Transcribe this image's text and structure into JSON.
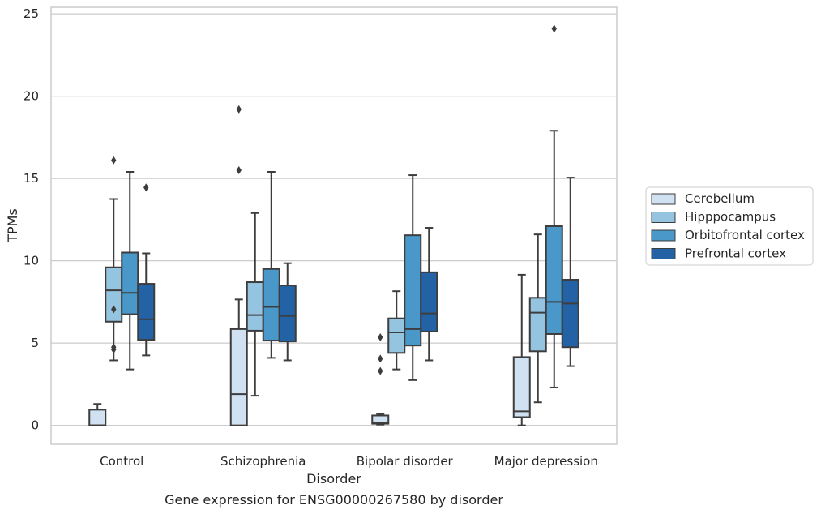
{
  "chart_data": {
    "type": "box",
    "title": "Gene expression for ENSG00000267580 by disorder",
    "xlabel": "Disorder",
    "ylabel": "TPMs",
    "ylim": [
      -1.15,
      25.4
    ],
    "yticks": [
      0,
      5,
      10,
      15,
      20,
      25
    ],
    "grid": "horizontal",
    "legend_position": "right",
    "categories": [
      "Control",
      "Schizophrenia",
      "Bipolar disorder",
      "Major depression"
    ],
    "colors": [
      "#d0e1f2",
      "#94c4df",
      "#4a98c9",
      "#2363a5"
    ],
    "series": [
      {
        "name": "Cerebellum",
        "boxes": [
          {
            "whislo": 0,
            "q1": 0,
            "med": 0,
            "q3": 0.95,
            "whishi": 1.3,
            "fliers": []
          },
          {
            "whislo": 0,
            "q1": 0,
            "med": 1.9,
            "q3": 5.85,
            "whishi": 7.65,
            "fliers": [
              15.5,
              19.2
            ]
          },
          {
            "whislo": 0.05,
            "q1": 0.1,
            "med": 0.15,
            "q3": 0.6,
            "whishi": 0.7,
            "fliers": [
              3.3,
              4.05,
              5.35
            ]
          },
          {
            "whislo": 0,
            "q1": 0.5,
            "med": 0.85,
            "q3": 4.15,
            "whishi": 9.15,
            "fliers": []
          }
        ]
      },
      {
        "name": "Hipppocampus",
        "boxes": [
          {
            "whislo": 3.95,
            "q1": 6.3,
            "med": 8.2,
            "q3": 9.6,
            "whishi": 13.75,
            "fliers": [
              16.1,
              7.05,
              4.75,
              4.6
            ]
          },
          {
            "whislo": 1.8,
            "q1": 5.75,
            "med": 6.7,
            "q3": 8.7,
            "whishi": 12.9,
            "fliers": []
          },
          {
            "whislo": 3.4,
            "q1": 4.4,
            "med": 5.65,
            "q3": 6.5,
            "whishi": 8.15,
            "fliers": []
          },
          {
            "whislo": 1.4,
            "q1": 4.5,
            "med": 6.85,
            "q3": 7.75,
            "whishi": 11.6,
            "fliers": []
          }
        ]
      },
      {
        "name": "Orbitofrontal cortex",
        "boxes": [
          {
            "whislo": 3.4,
            "q1": 6.75,
            "med": 8.05,
            "q3": 10.5,
            "whishi": 15.4,
            "fliers": []
          },
          {
            "whislo": 4.1,
            "q1": 5.15,
            "med": 7.2,
            "q3": 9.5,
            "whishi": 15.4,
            "fliers": []
          },
          {
            "whislo": 2.75,
            "q1": 4.85,
            "med": 5.85,
            "q3": 11.55,
            "whishi": 15.2,
            "fliers": []
          },
          {
            "whislo": 2.3,
            "q1": 5.55,
            "med": 7.5,
            "q3": 12.1,
            "whishi": 17.9,
            "fliers": [
              24.1
            ]
          }
        ]
      },
      {
        "name": "Prefrontal cortex",
        "boxes": [
          {
            "whislo": 4.25,
            "q1": 5.2,
            "med": 6.45,
            "q3": 8.6,
            "whishi": 10.45,
            "fliers": [
              14.45
            ]
          },
          {
            "whislo": 3.95,
            "q1": 5.1,
            "med": 6.65,
            "q3": 8.5,
            "whishi": 9.85,
            "fliers": []
          },
          {
            "whislo": 3.95,
            "q1": 5.7,
            "med": 6.8,
            "q3": 9.3,
            "whishi": 12,
            "fliers": []
          },
          {
            "whislo": 3.6,
            "q1": 4.75,
            "med": 7.4,
            "q3": 8.85,
            "whishi": 15.05,
            "fliers": []
          }
        ]
      }
    ]
  }
}
